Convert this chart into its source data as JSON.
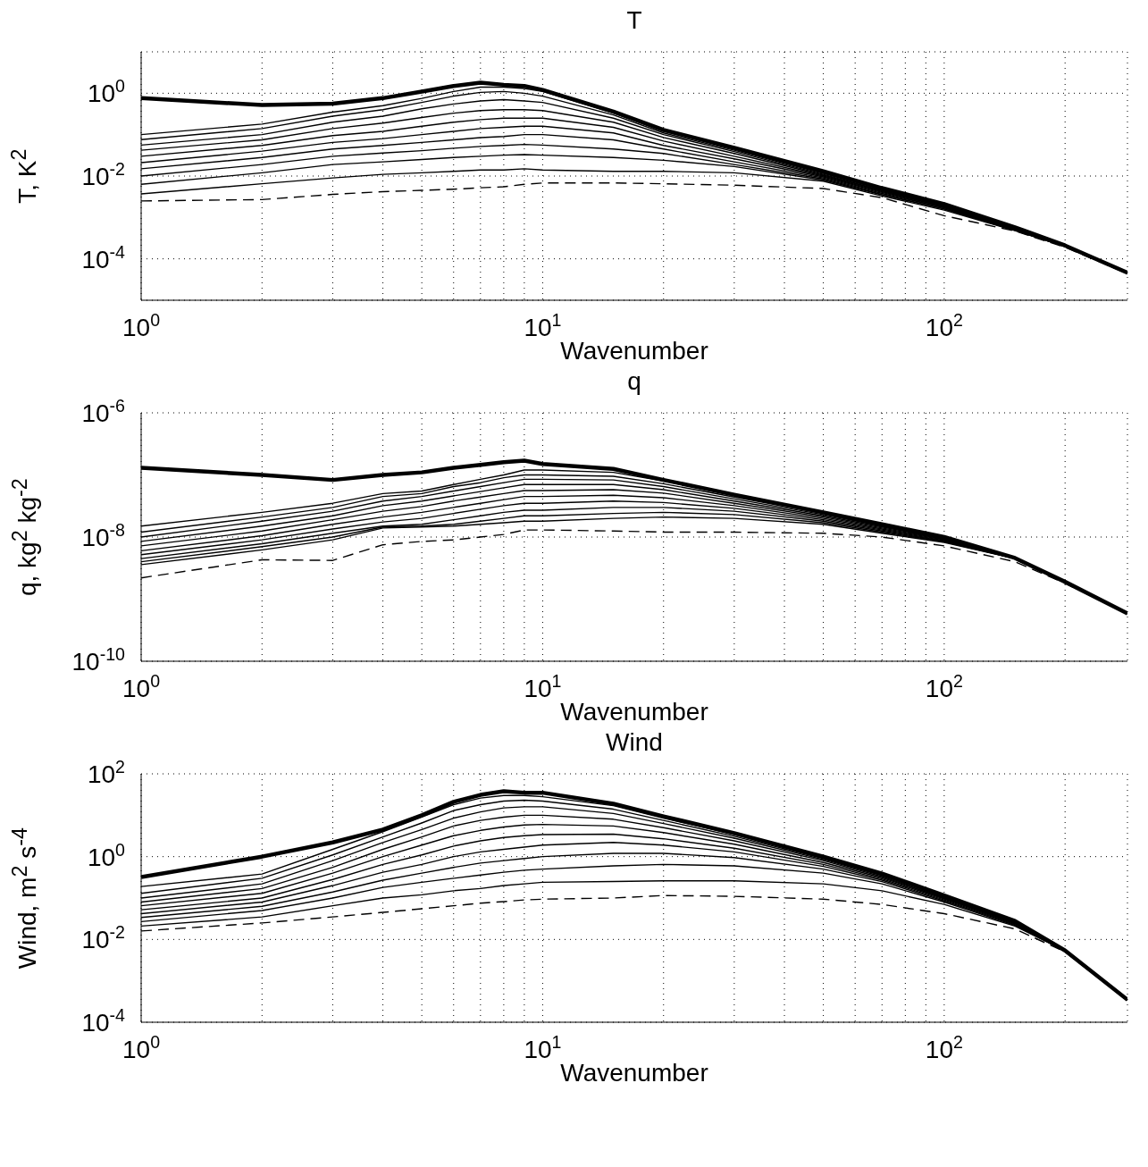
{
  "chart_data": [
    {
      "type": "line",
      "title": "T",
      "xlabel": "Wavenumber",
      "ylabel": "T, K$^{2}$",
      "log": "xy",
      "grid": true,
      "xlim": [
        1,
        286
      ],
      "ylim": [
        1e-05,
        10
      ],
      "xticks": [
        {
          "value": 1,
          "label": "10$^{0}$"
        },
        {
          "value": 2,
          "label": null
        },
        {
          "value": 3,
          "label": null
        },
        {
          "value": 4,
          "label": null
        },
        {
          "value": 5,
          "label": null
        },
        {
          "value": 6,
          "label": null
        },
        {
          "value": 7,
          "label": null
        },
        {
          "value": 8,
          "label": null
        },
        {
          "value": 9,
          "label": null
        },
        {
          "value": 10,
          "label": "10$^{1}$"
        },
        {
          "value": 20,
          "label": null
        },
        {
          "value": 30,
          "label": null
        },
        {
          "value": 40,
          "label": null
        },
        {
          "value": 50,
          "label": null
        },
        {
          "value": 60,
          "label": null
        },
        {
          "value": 70,
          "label": null
        },
        {
          "value": 80,
          "label": null
        },
        {
          "value": 90,
          "label": null
        },
        {
          "value": 100,
          "label": "10$^{2}$"
        },
        {
          "value": 200,
          "label": null
        }
      ],
      "yticks": [
        {
          "value": 0.0001,
          "label": "10$^{-4}$"
        },
        {
          "value": 0.01,
          "label": "10$^{-2}$"
        },
        {
          "value": 1,
          "label": "10$^{0}$"
        }
      ],
      "x": [
        1,
        2,
        3,
        4,
        5,
        6,
        7,
        8,
        9,
        10,
        15,
        20,
        30,
        50,
        70,
        100,
        150,
        200,
        286
      ],
      "series": [
        {
          "color": "#000000",
          "values": [
            0.76,
            0.52,
            0.56,
            0.76,
            1.1,
            1.5,
            1.8,
            1.6,
            1.5,
            1.2,
            0.36,
            0.13,
            0.048,
            0.013,
            0.0051,
            0.0021,
            0.00058,
            0.00021,
            4.6e-05
          ]
        },
        {
          "color": "#000000",
          "values": [
            0.1,
            0.18,
            0.35,
            0.5,
            0.75,
            1.1,
            1.4,
            1.4,
            1.3,
            1.1,
            0.33,
            0.12,
            0.045,
            0.012,
            0.0049,
            0.002,
            0.00055,
            0.0002,
            4.5e-05
          ]
        },
        {
          "color": "#000000",
          "values": [
            0.076,
            0.14,
            0.28,
            0.4,
            0.6,
            0.85,
            1.05,
            1.1,
            1.0,
            0.85,
            0.3,
            0.11,
            0.042,
            0.0115,
            0.0047,
            0.0019,
            0.00054,
            0.0002,
            4.5e-05
          ]
        },
        {
          "color": "#000000",
          "values": [
            0.056,
            0.1,
            0.2,
            0.28,
            0.42,
            0.55,
            0.65,
            0.7,
            0.65,
            0.6,
            0.25,
            0.1,
            0.039,
            0.011,
            0.0045,
            0.0019,
            0.00053,
            0.0002,
            4.5e-05
          ]
        },
        {
          "color": "#000000",
          "values": [
            0.042,
            0.075,
            0.14,
            0.19,
            0.26,
            0.33,
            0.38,
            0.4,
            0.4,
            0.38,
            0.2,
            0.085,
            0.035,
            0.0105,
            0.0044,
            0.0018,
            0.00052,
            0.0002,
            4.5e-05
          ]
        },
        {
          "color": "#000000",
          "values": [
            0.03,
            0.055,
            0.095,
            0.12,
            0.16,
            0.2,
            0.23,
            0.25,
            0.25,
            0.25,
            0.15,
            0.07,
            0.03,
            0.01,
            0.0042,
            0.0018,
            0.00051,
            0.0002,
            4.5e-05
          ]
        },
        {
          "color": "#000000",
          "values": [
            0.021,
            0.04,
            0.065,
            0.08,
            0.1,
            0.12,
            0.14,
            0.15,
            0.16,
            0.16,
            0.11,
            0.055,
            0.026,
            0.0095,
            0.004,
            0.0017,
            0.0005,
            0.0002,
            4.5e-05
          ]
        },
        {
          "color": "#000000",
          "values": [
            0.015,
            0.028,
            0.045,
            0.055,
            0.065,
            0.075,
            0.085,
            0.09,
            0.1,
            0.1,
            0.075,
            0.045,
            0.022,
            0.009,
            0.0038,
            0.0017,
            0.0005,
            0.0002,
            4.5e-05
          ]
        },
        {
          "color": "#000000",
          "values": [
            0.01,
            0.019,
            0.03,
            0.036,
            0.041,
            0.047,
            0.052,
            0.055,
            0.058,
            0.056,
            0.045,
            0.035,
            0.019,
            0.0085,
            0.0036,
            0.0016,
            0.00049,
            0.0002,
            4.5e-05
          ]
        },
        {
          "color": "#000000",
          "values": [
            0.0063,
            0.012,
            0.019,
            0.022,
            0.025,
            0.028,
            0.03,
            0.032,
            0.033,
            0.032,
            0.028,
            0.024,
            0.017,
            0.008,
            0.0035,
            0.0016,
            0.00049,
            0.0002,
            4.5e-05
          ]
        },
        {
          "color": "#000000",
          "values": [
            0.0037,
            0.0065,
            0.009,
            0.011,
            0.012,
            0.013,
            0.014,
            0.014,
            0.015,
            0.014,
            0.013,
            0.013,
            0.012,
            0.0075,
            0.0033,
            0.0015,
            0.00048,
            0.0002,
            4.5e-05
          ]
        },
        {
          "color": "#000000",
          "line_style": "dashed",
          "values": [
            0.0025,
            0.0027,
            0.0036,
            0.0042,
            0.0045,
            0.0048,
            0.0052,
            0.0055,
            0.0063,
            0.0068,
            0.0068,
            0.0065,
            0.006,
            0.005,
            0.003,
            0.0011,
            0.00047,
            0.00019,
            4.4e-05
          ]
        }
      ]
    },
    {
      "type": "line",
      "title": "q",
      "xlabel": "Wavenumber",
      "ylabel": "q, kg$^{2}$ kg$^{-2}$",
      "log": "xy",
      "grid": true,
      "xlim": [
        1,
        286
      ],
      "ylim": [
        1e-10,
        1e-06
      ],
      "xticks": [
        {
          "value": 1,
          "label": "10$^{0}$"
        },
        {
          "value": 2,
          "label": null
        },
        {
          "value": 3,
          "label": null
        },
        {
          "value": 4,
          "label": null
        },
        {
          "value": 5,
          "label": null
        },
        {
          "value": 6,
          "label": null
        },
        {
          "value": 7,
          "label": null
        },
        {
          "value": 8,
          "label": null
        },
        {
          "value": 9,
          "label": null
        },
        {
          "value": 10,
          "label": "10$^{1}$"
        },
        {
          "value": 20,
          "label": null
        },
        {
          "value": 30,
          "label": null
        },
        {
          "value": 40,
          "label": null
        },
        {
          "value": 50,
          "label": null
        },
        {
          "value": 60,
          "label": null
        },
        {
          "value": 70,
          "label": null
        },
        {
          "value": 80,
          "label": null
        },
        {
          "value": 90,
          "label": null
        },
        {
          "value": 100,
          "label": "10$^{2}$"
        },
        {
          "value": 200,
          "label": null
        }
      ],
      "yticks": [
        {
          "value": 1e-10,
          "label": "10$^{-10}$"
        },
        {
          "value": 1e-08,
          "label": "10$^{-8}$"
        },
        {
          "value": 1e-06,
          "label": "10$^{-6}$"
        }
      ],
      "x": [
        1,
        2,
        3,
        4,
        5,
        6,
        7,
        8,
        9,
        10,
        15,
        20,
        30,
        50,
        70,
        100,
        150,
        200,
        286
      ],
      "series": [
        {
          "color": "#000000",
          "values": [
            1.3e-07,
            1e-07,
            8.3e-08,
            1e-07,
            1.1e-07,
            1.3e-07,
            1.45e-07,
            1.6e-07,
            1.7e-07,
            1.5e-07,
            1.25e-07,
            8.3e-08,
            4.8e-08,
            2.5e-08,
            1.6e-08,
            1e-08,
            4.6e-09,
            1.9e-09,
            5.9e-10
          ]
        },
        {
          "color": "#000000",
          "values": [
            1.5e-08,
            2.5e-08,
            3.5e-08,
            5e-08,
            5.5e-08,
            7e-08,
            8.5e-08,
            1e-07,
            1.2e-07,
            1.2e-07,
            1.1e-07,
            8e-08,
            4.7e-08,
            2.5e-08,
            1.6e-08,
            1e-08,
            4.6e-09,
            1.9e-09,
            5.9e-10
          ]
        },
        {
          "color": "#000000",
          "values": [
            1.2e-08,
            2.1e-08,
            3e-08,
            4.5e-08,
            5e-08,
            6.5e-08,
            7.5e-08,
            9e-08,
            1e-07,
            1e-07,
            9.5e-08,
            7.2e-08,
            4.4e-08,
            2.4e-08,
            1.55e-08,
            9.8e-09,
            4.5e-09,
            1.9e-09,
            5.9e-10
          ]
        },
        {
          "color": "#000000",
          "values": [
            1e-08,
            1.8e-08,
            2.6e-08,
            3.8e-08,
            4.5e-08,
            5.5e-08,
            6.5e-08,
            7.5e-08,
            8.5e-08,
            8.5e-08,
            8.3e-08,
            6.5e-08,
            4.1e-08,
            2.3e-08,
            1.5e-08,
            9.6e-09,
            4.5e-09,
            1.9e-09,
            5.9e-10
          ]
        },
        {
          "color": "#000000",
          "values": [
            8.5e-09,
            1.5e-08,
            2.2e-08,
            3.2e-08,
            3.8e-08,
            4.6e-08,
            5.4e-08,
            6.2e-08,
            7e-08,
            7e-08,
            7e-08,
            5.8e-08,
            3.8e-08,
            2.2e-08,
            1.45e-08,
            9.4e-09,
            4.5e-09,
            1.9e-09,
            5.9e-10
          ]
        },
        {
          "color": "#000000",
          "values": [
            7.2e-09,
            1.25e-08,
            1.9e-08,
            2.6e-08,
            3.1e-08,
            3.8e-08,
            4.4e-08,
            5e-08,
            5.6e-08,
            5.6e-08,
            5.8e-08,
            5.1e-08,
            3.5e-08,
            2.1e-08,
            1.4e-08,
            9.2e-09,
            4.5e-09,
            1.9e-09,
            5.9e-10
          ]
        },
        {
          "color": "#000000",
          "values": [
            6e-09,
            1.05e-08,
            1.6e-08,
            2.1e-08,
            2.5e-08,
            3e-08,
            3.5e-08,
            4e-08,
            4.5e-08,
            4.5e-08,
            4.7e-08,
            4.3e-08,
            3.2e-08,
            2e-08,
            1.35e-08,
            9e-09,
            4.5e-09,
            1.9e-09,
            5.9e-10
          ]
        },
        {
          "color": "#000000",
          "values": [
            5.2e-09,
            9e-09,
            1.35e-08,
            1.75e-08,
            2e-08,
            2.4e-08,
            2.8e-08,
            3.2e-08,
            3.5e-08,
            3.5e-08,
            3.8e-08,
            3.6e-08,
            2.9e-08,
            1.9e-08,
            1.3e-08,
            8.8e-09,
            4.5e-09,
            1.9e-09,
            5.9e-10
          ]
        },
        {
          "color": "#000000",
          "values": [
            4.5e-09,
            7.8e-09,
            1.15e-08,
            1.5e-08,
            1.6e-08,
            1.9e-08,
            2.2e-08,
            2.5e-08,
            2.7e-08,
            2.7e-08,
            3e-08,
            3e-08,
            2.6e-08,
            1.8e-08,
            1.25e-08,
            8.6e-09,
            4.5e-09,
            1.9e-09,
            5.9e-10
          ]
        },
        {
          "color": "#000000",
          "values": [
            4e-09,
            7e-09,
            1e-08,
            1.45e-08,
            1.5e-08,
            1.6e-08,
            1.8e-08,
            2e-08,
            2.2e-08,
            2.2e-08,
            2.4e-08,
            2.5e-08,
            2.3e-08,
            1.7e-08,
            1.2e-08,
            8.4e-09,
            4.5e-09,
            1.9e-09,
            5.9e-10
          ]
        },
        {
          "color": "#000000",
          "values": [
            3.6e-09,
            6.2e-09,
            9e-09,
            1.4e-08,
            1.45e-08,
            1.5e-08,
            1.6e-08,
            1.7e-08,
            1.8e-08,
            1.8e-08,
            2e-08,
            2.1e-08,
            2e-08,
            1.6e-08,
            1.15e-08,
            8.2e-09,
            4.5e-09,
            1.9e-09,
            5.9e-10
          ]
        },
        {
          "color": "#000000",
          "line_style": "dashed",
          "values": [
            2.2e-09,
            4.3e-09,
            4.2e-09,
            7.5e-09,
            8.5e-09,
            9e-09,
            1e-08,
            1.1e-08,
            1.3e-08,
            1.3e-08,
            1.25e-08,
            1.2e-08,
            1.2e-08,
            1.15e-08,
            1e-08,
            7.2e-09,
            4e-09,
            1.8e-09,
            5.8e-10
          ]
        }
      ]
    },
    {
      "type": "line",
      "title": "Wind",
      "xlabel": "Wavenumber",
      "ylabel": "Wind, m$^{2}$ s$^{-4}$",
      "log": "xy",
      "grid": true,
      "xlim": [
        1,
        286
      ],
      "ylim": [
        0.0001,
        100
      ],
      "xticks": [
        {
          "value": 1,
          "label": "10$^{0}$"
        },
        {
          "value": 2,
          "label": null
        },
        {
          "value": 3,
          "label": null
        },
        {
          "value": 4,
          "label": null
        },
        {
          "value": 5,
          "label": null
        },
        {
          "value": 6,
          "label": null
        },
        {
          "value": 7,
          "label": null
        },
        {
          "value": 8,
          "label": null
        },
        {
          "value": 9,
          "label": null
        },
        {
          "value": 10,
          "label": "10$^{1}$"
        },
        {
          "value": 20,
          "label": null
        },
        {
          "value": 30,
          "label": null
        },
        {
          "value": 40,
          "label": null
        },
        {
          "value": 50,
          "label": null
        },
        {
          "value": 60,
          "label": null
        },
        {
          "value": 70,
          "label": null
        },
        {
          "value": 80,
          "label": null
        },
        {
          "value": 90,
          "label": null
        },
        {
          "value": 100,
          "label": "10$^{2}$"
        },
        {
          "value": 200,
          "label": null
        }
      ],
      "yticks": [
        {
          "value": 0.0001,
          "label": "10$^{-4}$"
        },
        {
          "value": 0.01,
          "label": "10$^{-2}$"
        },
        {
          "value": 1,
          "label": "10$^{0}$"
        },
        {
          "value": 100,
          "label": "10$^{2}$"
        }
      ],
      "x": [
        1,
        2,
        3,
        4,
        5,
        6,
        7,
        8,
        9,
        10,
        15,
        20,
        30,
        50,
        70,
        100,
        150,
        200,
        286
      ],
      "series": [
        {
          "color": "#000000",
          "values": [
            0.32,
            1.0,
            2.2,
            4.5,
            10,
            21,
            31,
            38,
            35,
            35,
            19,
            9.4,
            3.7,
            1.0,
            0.39,
            0.115,
            0.028,
            0.0054,
            0.00035
          ]
        },
        {
          "color": "#000000",
          "values": [
            0.19,
            0.38,
            1.5,
            4,
            9,
            18,
            26,
            30,
            30,
            28,
            17,
            8.5,
            3.4,
            0.95,
            0.37,
            0.11,
            0.027,
            0.0053,
            0.00035
          ]
        },
        {
          "color": "#000000",
          "values": [
            0.13,
            0.3,
            1.1,
            3,
            6.5,
            13,
            18,
            22,
            23,
            22,
            14,
            7.5,
            3.1,
            0.9,
            0.36,
            0.11,
            0.027,
            0.0053,
            0.00035
          ]
        },
        {
          "color": "#000000",
          "values": [
            0.1,
            0.22,
            0.8,
            2.2,
            4.5,
            8.5,
            12,
            15,
            16,
            16,
            11,
            6.3,
            2.8,
            0.85,
            0.35,
            0.105,
            0.026,
            0.0053,
            0.00035
          ]
        },
        {
          "color": "#000000",
          "values": [
            0.08,
            0.17,
            0.55,
            1.5,
            3,
            5.5,
            7.5,
            9,
            10,
            10,
            8,
            5,
            2.4,
            0.8,
            0.33,
            0.1,
            0.026,
            0.0053,
            0.00035
          ]
        },
        {
          "color": "#000000",
          "values": [
            0.065,
            0.13,
            0.4,
            1.0,
            1.9,
            3.2,
            4.3,
            5.2,
            5.8,
            6,
            5.5,
            3.8,
            2,
            0.72,
            0.31,
            0.1,
            0.025,
            0.0053,
            0.00035
          ]
        },
        {
          "color": "#000000",
          "values": [
            0.052,
            0.1,
            0.28,
            0.65,
            1.1,
            1.8,
            2.4,
            2.9,
            3.2,
            3.4,
            3.5,
            2.7,
            1.6,
            0.65,
            0.29,
            0.095,
            0.025,
            0.0053,
            0.00035
          ]
        },
        {
          "color": "#000000",
          "values": [
            0.042,
            0.08,
            0.2,
            0.42,
            0.65,
            1.0,
            1.3,
            1.5,
            1.7,
            1.9,
            2.2,
            1.9,
            1.3,
            0.58,
            0.27,
            0.09,
            0.024,
            0.0053,
            0.00035
          ]
        },
        {
          "color": "#000000",
          "values": [
            0.034,
            0.063,
            0.14,
            0.27,
            0.4,
            0.55,
            0.7,
            0.8,
            0.9,
            1.0,
            1.2,
            1.2,
            0.95,
            0.5,
            0.25,
            0.085,
            0.023,
            0.0053,
            0.00035
          ]
        },
        {
          "color": "#000000",
          "values": [
            0.027,
            0.05,
            0.1,
            0.18,
            0.24,
            0.3,
            0.36,
            0.42,
            0.47,
            0.5,
            0.6,
            0.65,
            0.6,
            0.4,
            0.22,
            0.08,
            0.022,
            0.0053,
            0.00035
          ]
        },
        {
          "color": "#000000",
          "values": [
            0.021,
            0.035,
            0.065,
            0.1,
            0.12,
            0.15,
            0.17,
            0.2,
            0.22,
            0.24,
            0.25,
            0.26,
            0.26,
            0.22,
            0.15,
            0.07,
            0.021,
            0.0053,
            0.00035
          ]
        },
        {
          "color": "#000000",
          "line_style": "dashed",
          "values": [
            0.016,
            0.025,
            0.035,
            0.045,
            0.055,
            0.065,
            0.075,
            0.082,
            0.09,
            0.094,
            0.1,
            0.115,
            0.11,
            0.094,
            0.07,
            0.042,
            0.018,
            0.005,
            0.00034
          ]
        }
      ]
    }
  ]
}
